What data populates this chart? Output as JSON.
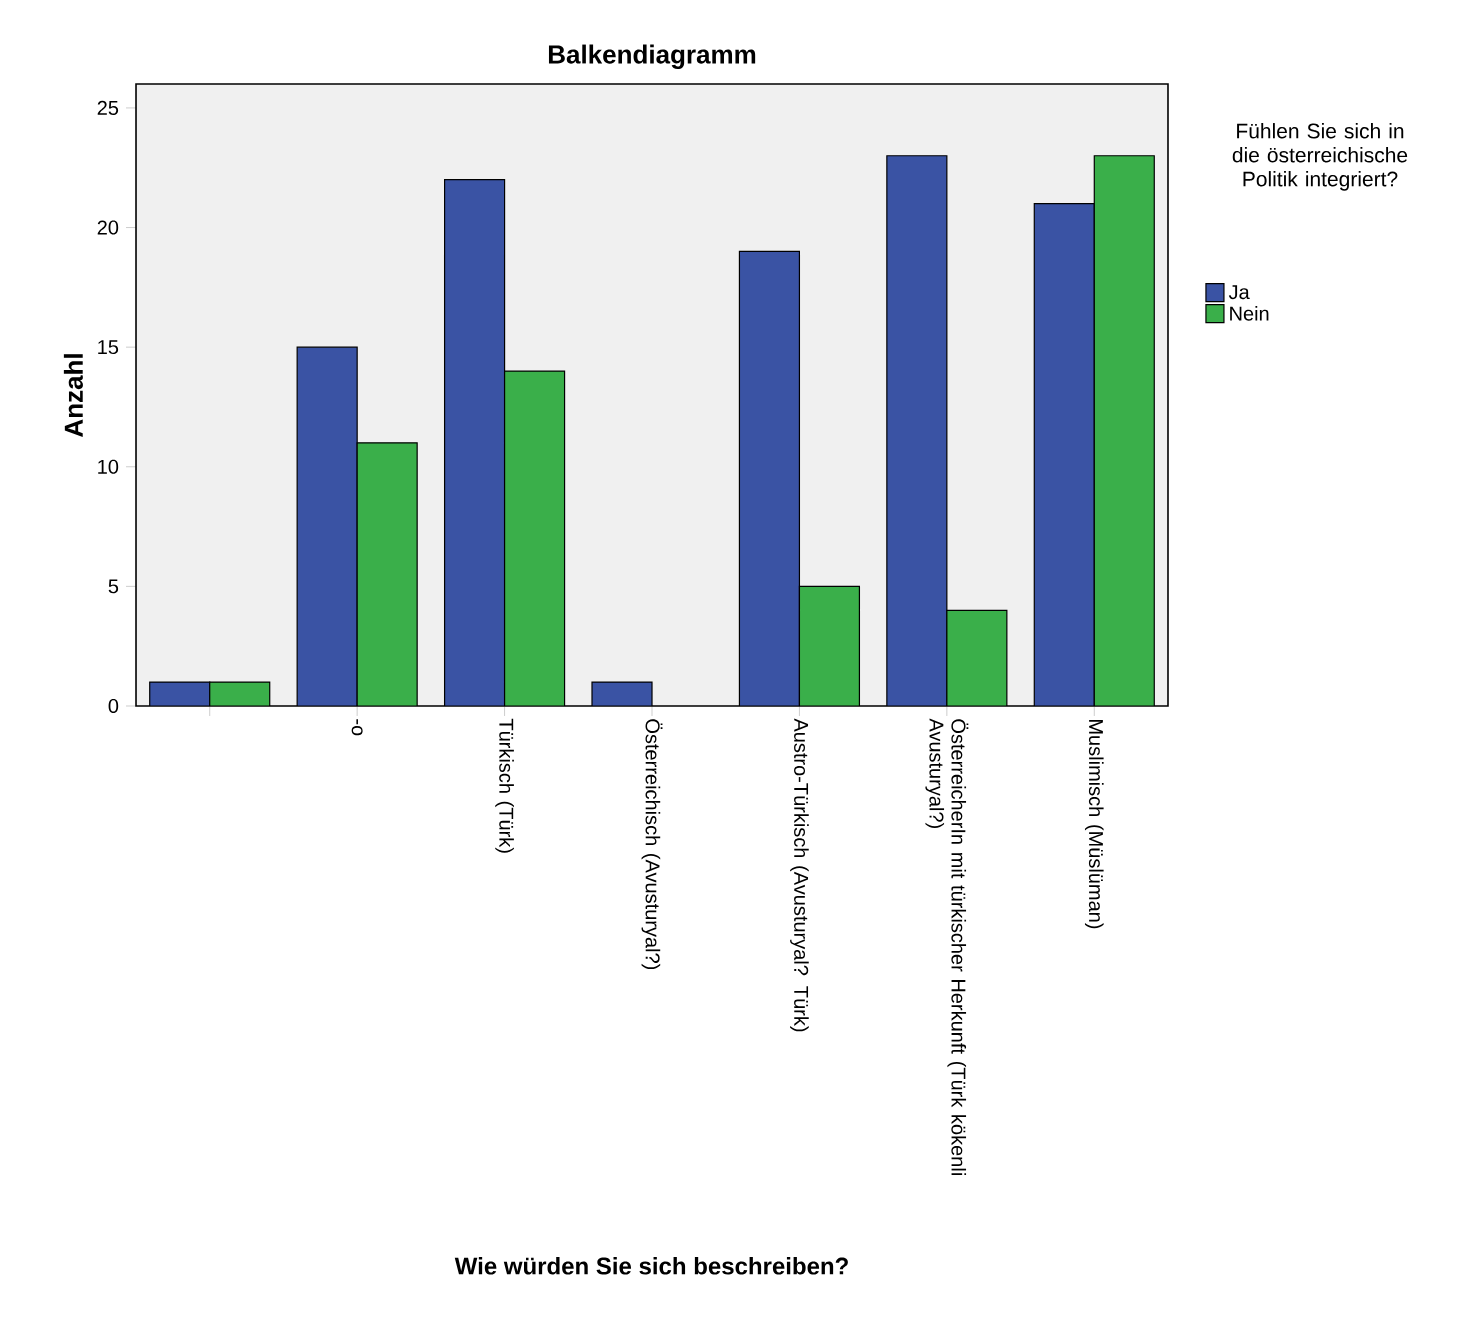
{
  "chart_data": {
    "type": "bar",
    "title": "Balkendiagramm",
    "xlabel": "Wie würden Sie sich beschreiben?",
    "ylabel": "Anzahl",
    "legend_title": "Fühlen Sie sich in die österreichische Politik integriert?",
    "categories": [
      null,
      "-o",
      "Türkisch (Türk)",
      "Österreichisch (Avusturyal?)",
      "Austro-Türkisch (Avusturyal? Türk)",
      "ÖsterreicherIn mit türkischer Herkunft (Türk kökenli Avusturyal?)",
      "Muslimisch (Müslüman)"
    ],
    "series": [
      {
        "name": "Ja",
        "color": "#3a53a4",
        "values": [
          1,
          15,
          22,
          1,
          19,
          23,
          21
        ]
      },
      {
        "name": "Nein",
        "color": "#3aaf4a",
        "values": [
          1,
          11,
          14,
          null,
          5,
          4,
          23
        ]
      }
    ],
    "ylim": [
      0,
      26
    ],
    "yticks": [
      0,
      5,
      10,
      15,
      20,
      25
    ],
    "legend": "right",
    "grid": false
  }
}
